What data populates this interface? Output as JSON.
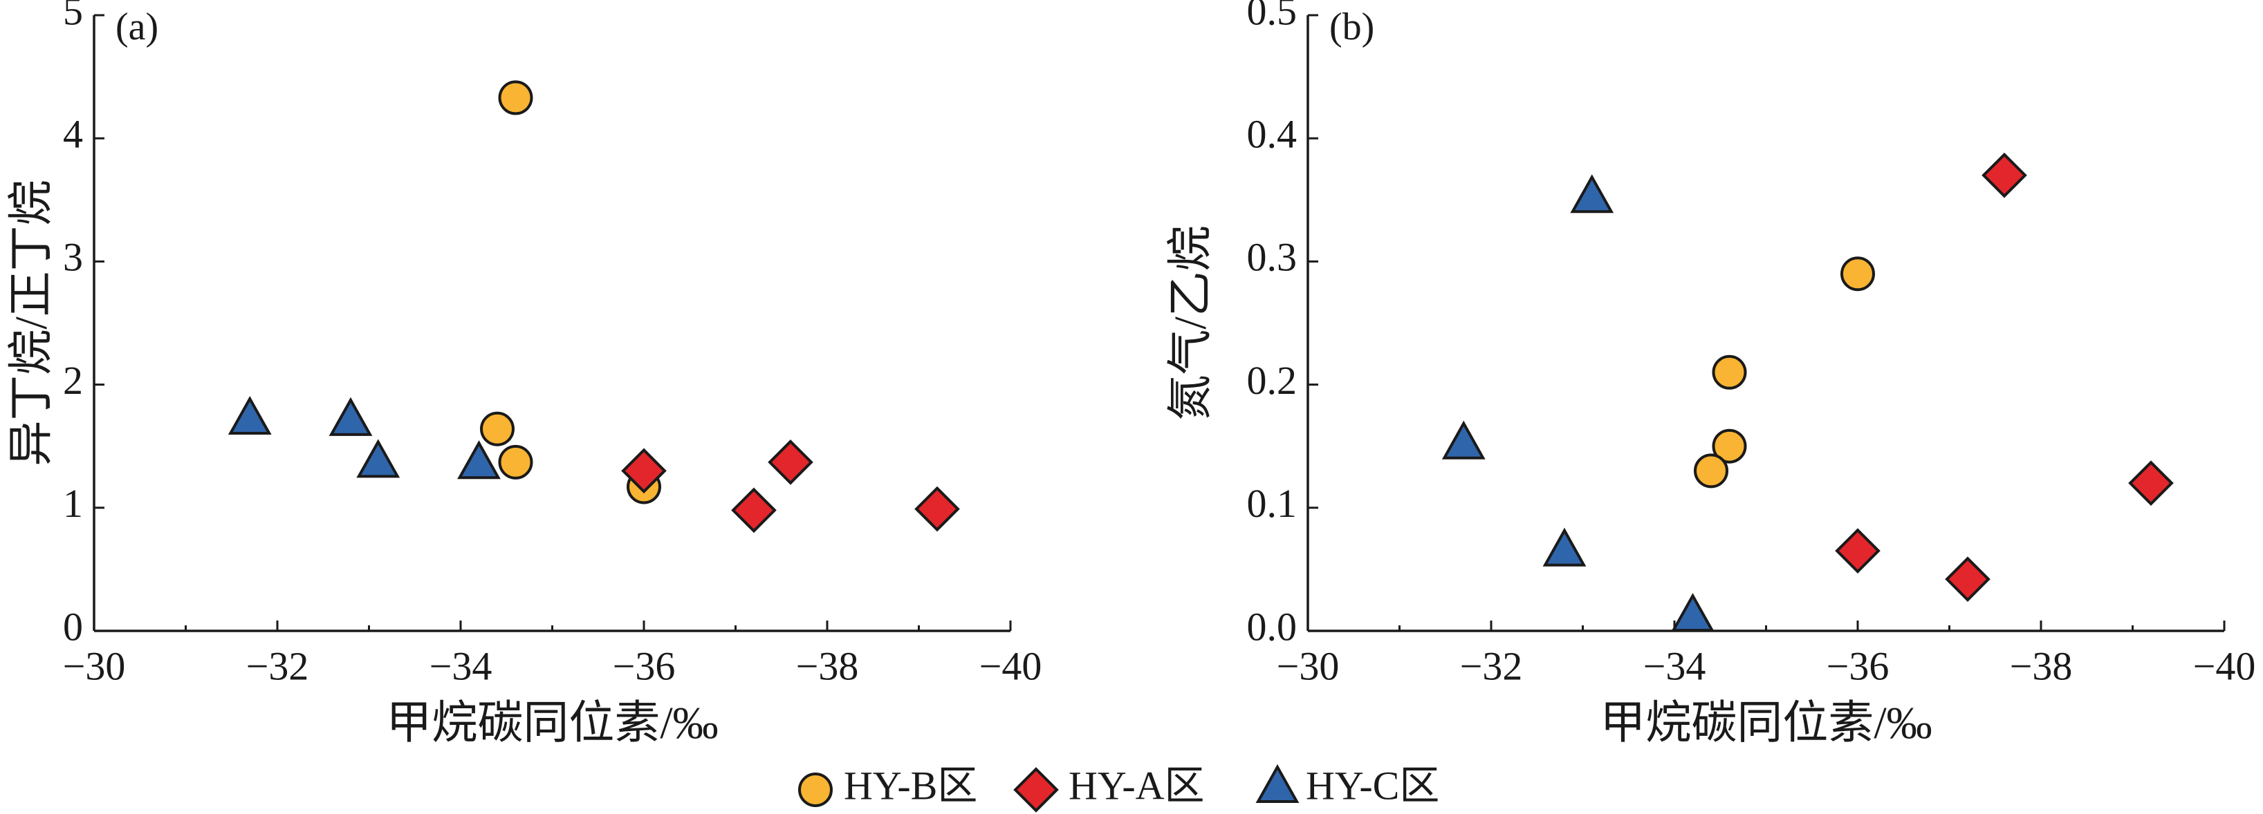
{
  "chart_data": [
    {
      "type": "scatter",
      "panel_label": "(a)",
      "xlabel": "甲烷碳同位素/‰",
      "ylabel": "异丁烷/正丁烷",
      "xlim": [
        -30,
        -40
      ],
      "ylim": [
        0,
        5
      ],
      "x_ticks": [
        -30,
        -32,
        -34,
        -36,
        -38,
        -40
      ],
      "x_tick_labels": [
        "−30",
        "−32",
        "−34",
        "−36",
        "−38",
        "−40"
      ],
      "y_ticks": [
        0,
        1,
        2,
        3,
        4,
        5
      ],
      "y_tick_labels": [
        "0",
        "1",
        "2",
        "3",
        "4",
        "5"
      ],
      "grid": false,
      "legend": "bottom-center",
      "series": [
        {
          "name": "HY-B区",
          "marker": "circle",
          "color": "#F8B432",
          "points": [
            [
              -34.6,
              4.33
            ],
            [
              -34.4,
              1.64
            ],
            [
              -34.6,
              1.37
            ],
            [
              -36.0,
              1.17
            ]
          ]
        },
        {
          "name": "HY-A区",
          "marker": "diamond",
          "color": "#E3262B",
          "points": [
            [
              -36.0,
              1.3
            ],
            [
              -37.2,
              0.98
            ],
            [
              -37.6,
              1.37
            ],
            [
              -39.2,
              0.99
            ]
          ]
        },
        {
          "name": "HY-C区",
          "marker": "triangle",
          "color": "#2F65AA",
          "points": [
            [
              -31.7,
              1.7
            ],
            [
              -32.8,
              1.69
            ],
            [
              -33.1,
              1.35
            ],
            [
              -34.2,
              1.34
            ]
          ]
        }
      ]
    },
    {
      "type": "scatter",
      "panel_label": "(b)",
      "xlabel": "甲烷碳同位素/‰",
      "ylabel": "氮气/乙烷",
      "xlim": [
        -30,
        -40
      ],
      "ylim": [
        0,
        0.5
      ],
      "x_ticks": [
        -30,
        -32,
        -34,
        -36,
        -38,
        -40
      ],
      "x_tick_labels": [
        "−30",
        "−32",
        "−34",
        "−36",
        "−38",
        "−40"
      ],
      "y_ticks": [
        0,
        0.1,
        0.2,
        0.3,
        0.4,
        0.5
      ],
      "y_tick_labels": [
        "0.0",
        "0.1",
        "0.2",
        "0.3",
        "0.4",
        "0.5"
      ],
      "grid": false,
      "legend": "bottom-center",
      "series": [
        {
          "name": "HY-B区",
          "marker": "circle",
          "color": "#F8B432",
          "points": [
            [
              -36.0,
              0.29
            ],
            [
              -34.6,
              0.21
            ],
            [
              -34.6,
              0.15
            ],
            [
              -34.4,
              0.13
            ]
          ]
        },
        {
          "name": "HY-A区",
          "marker": "diamond",
          "color": "#E3262B",
          "points": [
            [
              -37.6,
              0.37
            ],
            [
              -36.0,
              0.065
            ],
            [
              -37.2,
              0.042
            ],
            [
              -39.2,
              0.12
            ]
          ]
        },
        {
          "name": "HY-C区",
          "marker": "triangle",
          "color": "#2F65AA",
          "points": [
            [
              -33.1,
              0.35
            ],
            [
              -31.7,
              0.15
            ],
            [
              -32.8,
              0.063
            ],
            [
              -34.2,
              0.01
            ]
          ]
        }
      ]
    }
  ]
}
